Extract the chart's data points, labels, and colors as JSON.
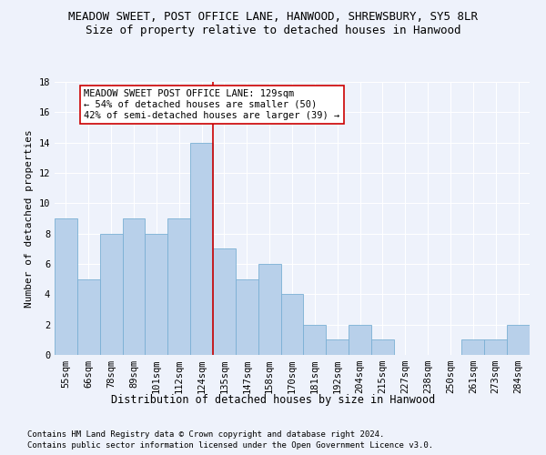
{
  "title": "MEADOW SWEET, POST OFFICE LANE, HANWOOD, SHREWSBURY, SY5 8LR",
  "subtitle": "Size of property relative to detached houses in Hanwood",
  "xlabel_bottom": "Distribution of detached houses by size in Hanwood",
  "ylabel": "Number of detached properties",
  "bar_color": "#b8d0ea",
  "bar_edge_color": "#7aafd4",
  "bin_labels": [
    "55sqm",
    "66sqm",
    "78sqm",
    "89sqm",
    "101sqm",
    "112sqm",
    "124sqm",
    "135sqm",
    "147sqm",
    "158sqm",
    "170sqm",
    "181sqm",
    "192sqm",
    "204sqm",
    "215sqm",
    "227sqm",
    "238sqm",
    "250sqm",
    "261sqm",
    "273sqm",
    "284sqm"
  ],
  "bar_values": [
    9,
    5,
    8,
    9,
    8,
    9,
    14,
    7,
    5,
    6,
    4,
    2,
    1,
    2,
    1,
    0,
    0,
    0,
    1,
    1,
    2
  ],
  "ylim": [
    0,
    18
  ],
  "yticks": [
    0,
    2,
    4,
    6,
    8,
    10,
    12,
    14,
    16,
    18
  ],
  "vline_index": 6.5,
  "vline_color": "#cc0000",
  "annotation_text": "MEADOW SWEET POST OFFICE LANE: 129sqm\n← 54% of detached houses are smaller (50)\n42% of semi-detached houses are larger (39) →",
  "annotation_box_color": "#ffffff",
  "annotation_box_edge_color": "#cc0000",
  "footnote1": "Contains HM Land Registry data © Crown copyright and database right 2024.",
  "footnote2": "Contains public sector information licensed under the Open Government Licence v3.0.",
  "background_color": "#eef2fb",
  "grid_color": "#ffffff",
  "title_fontsize": 9,
  "subtitle_fontsize": 9,
  "ylabel_fontsize": 8,
  "tick_fontsize": 7.5,
  "annotation_fontsize": 7.5,
  "xlabel_bottom_fontsize": 8.5,
  "footnote_fontsize": 6.5
}
